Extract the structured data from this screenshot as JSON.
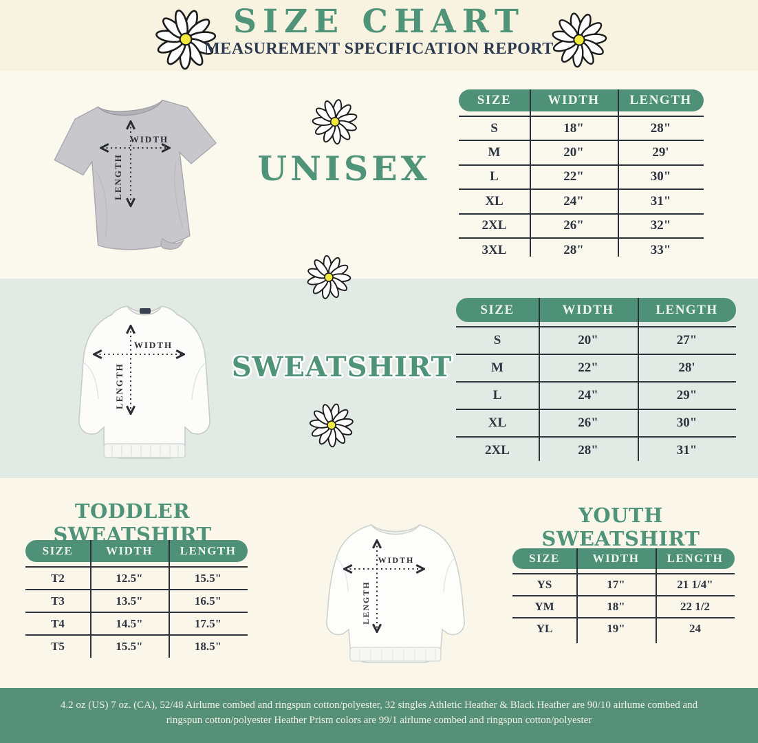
{
  "page": {
    "title": "SIZE CHART",
    "subtitle": "MEASUREMENT SPECIFICATION REPORT"
  },
  "labels": {
    "width": "WIDTH",
    "length": "LENGTH"
  },
  "unisex": {
    "title": "UNISEX",
    "table": {
      "headers": [
        "SIZE",
        "WIDTH",
        "LENGTH"
      ],
      "rows": [
        [
          "S",
          "18\"",
          "28\""
        ],
        [
          "M",
          "20\"",
          "29'"
        ],
        [
          "L",
          "22\"",
          "30\""
        ],
        [
          "XL",
          "24\"",
          "31\""
        ],
        [
          "2XL",
          "26\"",
          "32\""
        ],
        [
          "3XL",
          "28\"",
          "33\""
        ]
      ]
    }
  },
  "sweatshirt": {
    "title": "SWEATSHIRT",
    "table": {
      "headers": [
        "SIZE",
        "WIDTH",
        "LENGTH"
      ],
      "rows": [
        [
          "S",
          "20\"",
          "27\""
        ],
        [
          "M",
          "22\"",
          "28'"
        ],
        [
          "L",
          "24\"",
          "29\""
        ],
        [
          "XL",
          "26\"",
          "30\""
        ],
        [
          "2XL",
          "28\"",
          "31\""
        ]
      ]
    }
  },
  "toddler": {
    "title": "TODDLER SWEATSHIRT",
    "table": {
      "headers": [
        "SIZE",
        "WIDTH",
        "LENGTH"
      ],
      "rows": [
        [
          "T2",
          "12.5\"",
          "15.5\""
        ],
        [
          "T3",
          "13.5\"",
          "16.5\""
        ],
        [
          "T4",
          "14.5\"",
          "17.5\""
        ],
        [
          "T5",
          "15.5\"",
          "18.5\""
        ]
      ]
    }
  },
  "youth": {
    "title": "YOUTH SWEATSHIRT",
    "table": {
      "headers": [
        "SIZE",
        "WIDTH",
        "LENGTH"
      ],
      "rows": [
        [
          "YS",
          "17\"",
          "21 1/4\""
        ],
        [
          "YM",
          "18\"",
          "22 1/2"
        ],
        [
          "YL",
          "19\"",
          "24"
        ]
      ]
    }
  },
  "footer": {
    "text": "4.2 oz (US) 7 oz. (CA), 52/48 Airlume combed and ringspun cotton/polyester, 32 singles Athletic Heather & Black Heather are 90/10 airlume combed and ringspun cotton/polyester Heather Prism colors are 99/1 airlume combed and ringspun cotton/polyester"
  },
  "colors": {
    "accent_green": "#4f9379",
    "table_header_green": "#4f9178",
    "footer_green": "#569078",
    "navy": "#2d3b51",
    "daisy_yellow": "#f2e93e",
    "cream": "#f8f2e0",
    "mint": "#e1eae4"
  }
}
